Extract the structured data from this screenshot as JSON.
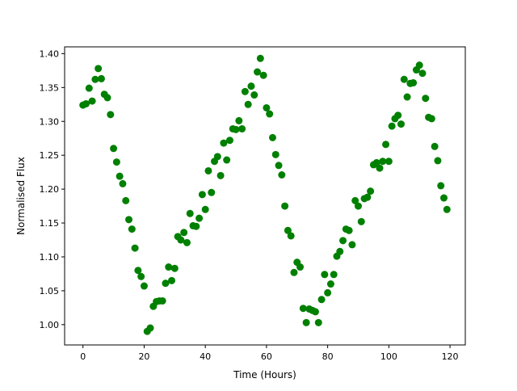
{
  "chart_data": {
    "type": "scatter",
    "title": "",
    "xlabel": "Time (Hours)",
    "ylabel": "Normalised Flux",
    "xlim": [
      -6,
      125
    ],
    "ylim": [
      0.97,
      1.41
    ],
    "xticks": [
      0,
      20,
      40,
      60,
      80,
      100,
      120
    ],
    "yticks": [
      1.0,
      1.05,
      1.1,
      1.15,
      1.2,
      1.25,
      1.3,
      1.35,
      1.4
    ],
    "xtick_labels": [
      "0",
      "20",
      "40",
      "60",
      "80",
      "100",
      "120"
    ],
    "ytick_labels": [
      "1.00",
      "1.05",
      "1.10",
      "1.15",
      "1.20",
      "1.25",
      "1.30",
      "1.35",
      "1.40"
    ],
    "grid": false,
    "marker_color": "#008000",
    "series": [
      {
        "x": [
          0,
          1,
          2,
          3,
          4,
          5,
          6,
          7,
          8,
          9,
          10,
          11,
          12,
          13,
          14,
          15,
          16,
          17,
          18,
          19,
          20,
          21,
          22,
          23,
          24,
          25,
          26,
          27,
          28,
          29,
          30,
          31,
          32,
          33,
          34,
          35,
          36,
          37,
          38,
          39,
          40,
          41,
          42,
          43,
          44,
          45,
          46,
          47,
          48,
          49,
          50,
          51,
          52,
          53,
          54,
          55,
          56,
          57,
          58,
          59,
          60,
          61,
          62,
          63,
          64,
          65,
          66,
          67,
          68,
          69,
          70,
          71,
          72,
          73,
          74,
          75,
          76,
          77,
          78,
          79,
          80,
          81,
          82,
          83,
          84,
          85,
          86,
          87,
          88,
          89,
          90,
          91,
          92,
          93,
          94,
          95,
          96,
          97,
          98,
          99,
          100,
          101,
          102,
          103,
          104,
          105,
          106,
          107,
          108,
          109,
          110,
          111,
          112,
          113,
          114,
          115,
          116,
          117,
          118,
          119
        ],
        "y": [
          1.324,
          1.326,
          1.349,
          1.33,
          1.362,
          1.378,
          1.363,
          1.34,
          1.335,
          1.31,
          1.26,
          1.24,
          1.219,
          1.208,
          1.183,
          1.155,
          1.141,
          1.113,
          1.08,
          1.071,
          1.057,
          0.99,
          0.995,
          1.027,
          1.034,
          1.035,
          1.035,
          1.061,
          1.085,
          1.065,
          1.083,
          1.13,
          1.125,
          1.136,
          1.121,
          1.164,
          1.146,
          1.145,
          1.157,
          1.192,
          1.17,
          1.227,
          1.195,
          1.241,
          1.248,
          1.22,
          1.268,
          1.243,
          1.272,
          1.289,
          1.288,
          1.301,
          1.289,
          1.344,
          1.325,
          1.352,
          1.339,
          1.373,
          1.393,
          1.368,
          1.32,
          1.311,
          1.276,
          1.251,
          1.235,
          1.221,
          1.175,
          1.139,
          1.131,
          1.077,
          1.092,
          1.085,
          1.024,
          1.003,
          1.023,
          1.021,
          1.019,
          1.003,
          1.037,
          1.074,
          1.047,
          1.06,
          1.074,
          1.101,
          1.108,
          1.124,
          1.141,
          1.139,
          1.118,
          1.183,
          1.175,
          1.152,
          1.186,
          1.188,
          1.197,
          1.236,
          1.239,
          1.231,
          1.241,
          1.266,
          1.241,
          1.293,
          1.304,
          1.309,
          1.296,
          1.362,
          1.336,
          1.356,
          1.357,
          1.376,
          1.383,
          1.371,
          1.334,
          1.306,
          1.304,
          1.263,
          1.242,
          1.205,
          1.187,
          1.17
        ]
      }
    ]
  }
}
